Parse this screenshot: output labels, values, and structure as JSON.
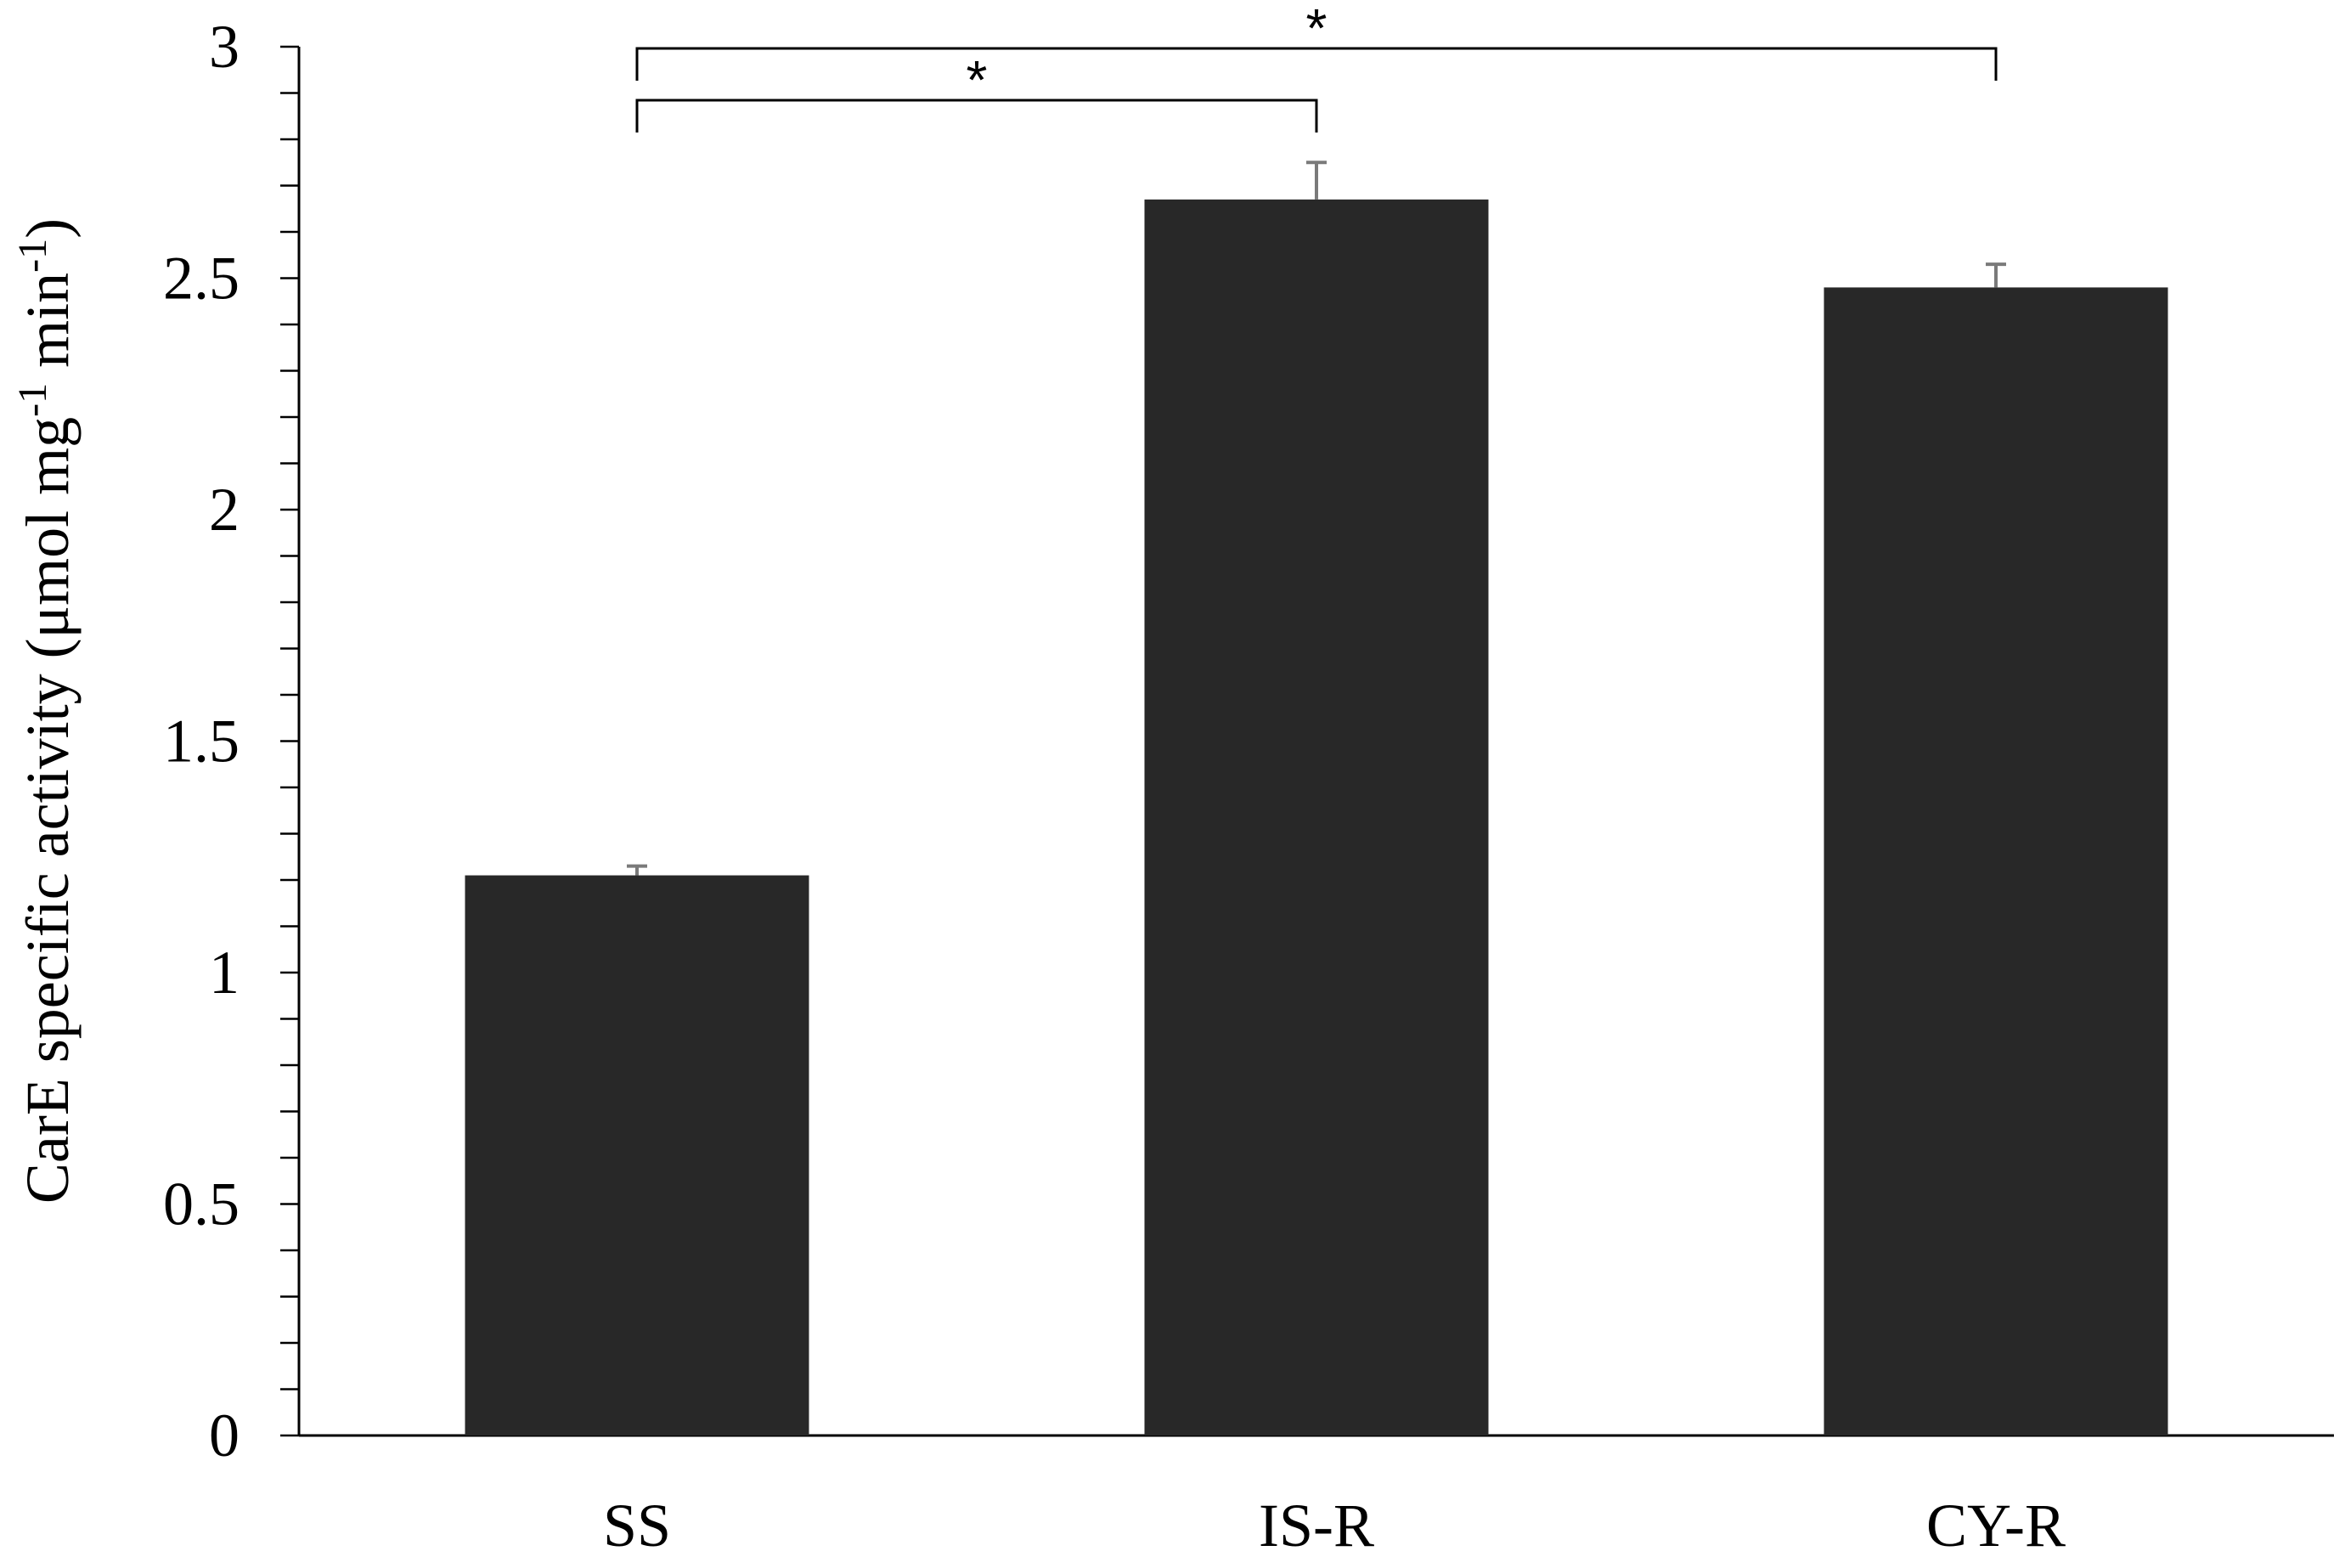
{
  "chart_data": {
    "type": "bar",
    "title": "",
    "xlabel": "",
    "ylabel": {
      "prefix": "CarE specific activity (μmol mg",
      "sup1": "-1",
      "middle": " min",
      "sup2": "-1",
      "suffix": ")"
    },
    "categories": [
      "SS",
      "IS-R",
      "CY-R"
    ],
    "series": [
      {
        "values": [
          1.21,
          2.67,
          2.48
        ],
        "errors": [
          0.02,
          0.08,
          0.05
        ],
        "color": "#282828"
      }
    ],
    "ylim": [
      0,
      3
    ],
    "yticks": [
      0,
      0.5,
      1,
      1.5,
      2,
      2.5,
      3
    ],
    "ytick_labels": [
      "0",
      "0.5",
      "1",
      "1.5",
      "2",
      "2.5",
      "3"
    ],
    "minor_tick_step": 0.1,
    "grid": false,
    "legend": "none",
    "significance": [
      {
        "from": "SS",
        "to": "IS-R",
        "label": "*"
      },
      {
        "from": "SS",
        "to": "CY-R",
        "label": "*"
      }
    ],
    "colors": {
      "bar": "#282828",
      "error_bar": "#7a7a7a",
      "axis": "#000000"
    }
  }
}
